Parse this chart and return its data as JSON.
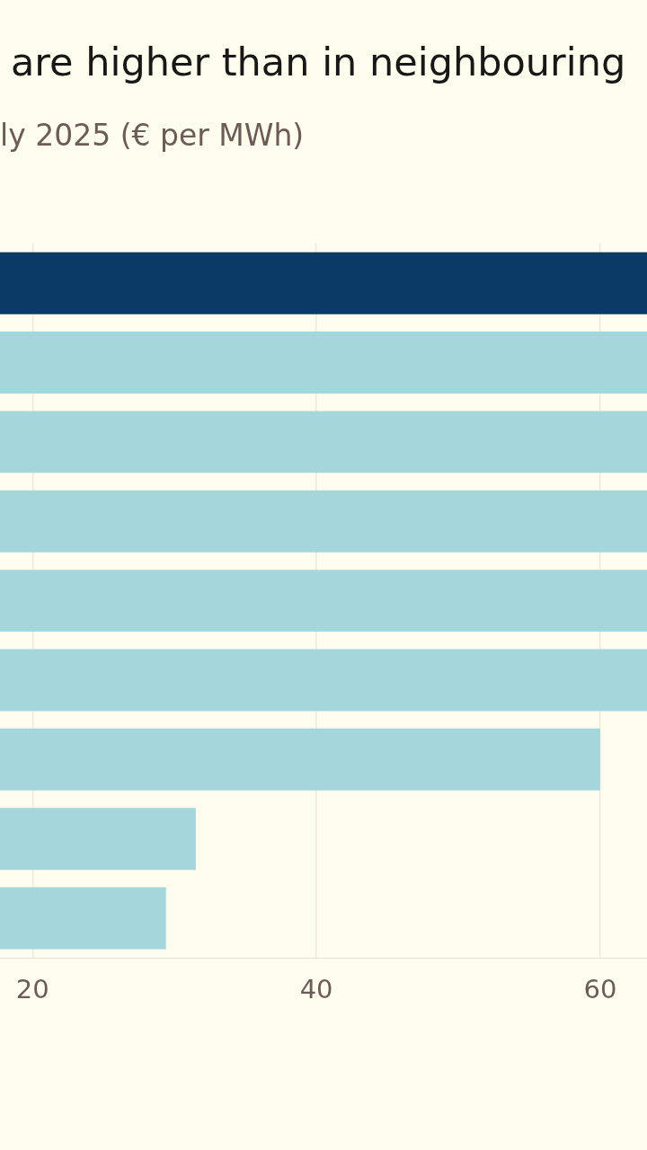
{
  "chart_data": {
    "type": "bar",
    "orientation": "horizontal",
    "title": "are higher than in neighbouring",
    "subtitle": "ly 2025 (€ per MWh)",
    "categories": [
      null,
      null,
      null,
      null,
      null,
      null,
      null,
      null,
      null
    ],
    "values": [
      63.3,
      63.3,
      63.3,
      63.3,
      63.3,
      63.3,
      60,
      31.5,
      29.4
    ],
    "colors": [
      "#0b3a66",
      "#a4d6dc",
      "#a4d6dc",
      "#a4d6dc",
      "#a4d6dc",
      "#a4d6dc",
      "#a4d6dc",
      "#a4d6dc",
      "#a4d6dc"
    ],
    "xlim": [
      17.7,
      63.3
    ],
    "xticks": [
      20,
      40,
      60
    ],
    "grid": "x"
  }
}
